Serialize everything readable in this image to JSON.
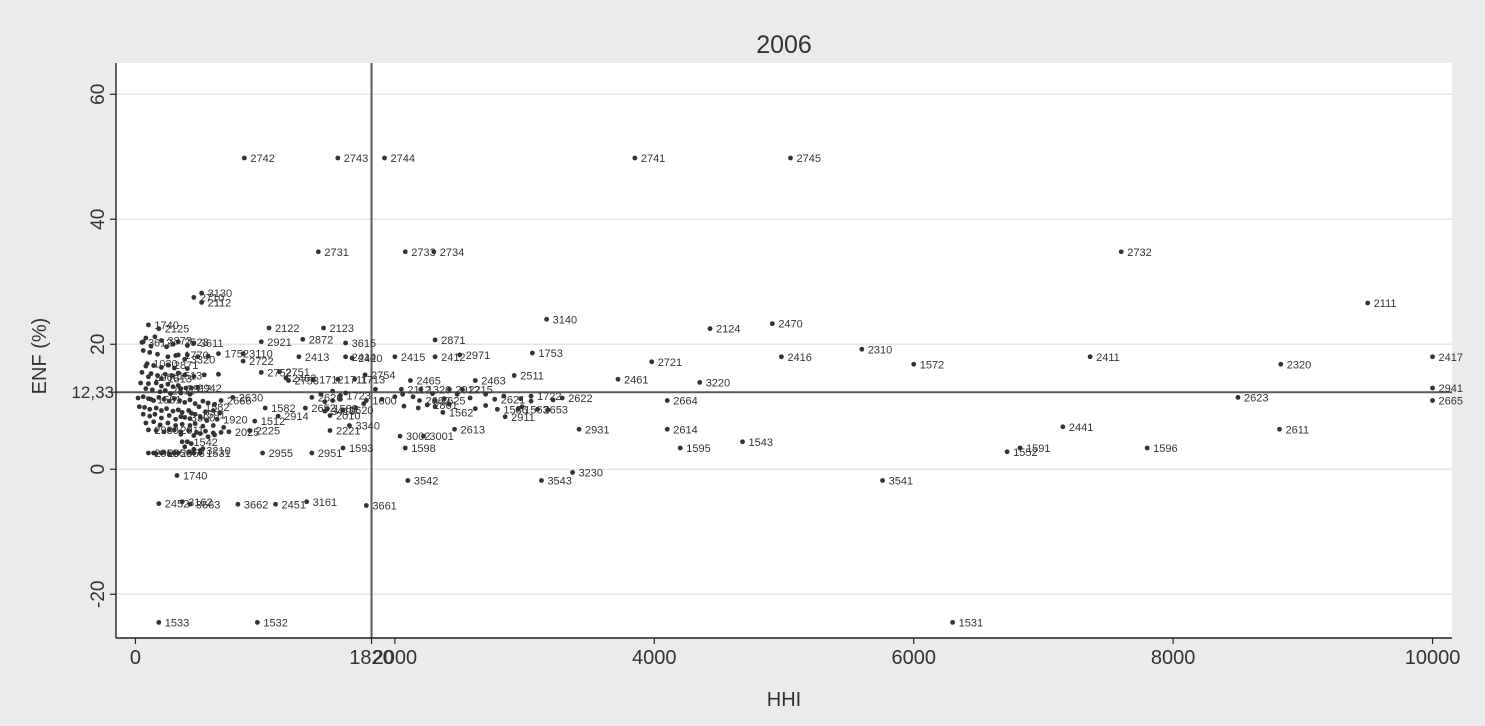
{
  "chart_data": {
    "type": "scatter",
    "title": "2006",
    "xlabel": "HHI",
    "ylabel": "ENF (%)",
    "xlim": [
      -150,
      10150
    ],
    "ylim": [
      -27,
      65
    ],
    "xticks": [
      {
        "v": 0,
        "label": "0"
      },
      {
        "v": 1820,
        "label": "1820"
      },
      {
        "v": 2000,
        "label": "2000"
      },
      {
        "v": 4000,
        "label": "4000"
      },
      {
        "v": 6000,
        "label": "6000"
      },
      {
        "v": 8000,
        "label": "8000"
      },
      {
        "v": 10000,
        "label": "10000"
      }
    ],
    "yticks": [
      {
        "v": -20,
        "label": "-20"
      },
      {
        "v": 0,
        "label": "0"
      },
      {
        "v": 12.33,
        "label": "12,33"
      },
      {
        "v": 20,
        "label": "20"
      },
      {
        "v": 40,
        "label": "40"
      },
      {
        "v": 60,
        "label": "60"
      }
    ],
    "gridlines_y": [
      -20,
      0,
      20,
      40,
      60
    ],
    "reference_lines": {
      "x": 1820,
      "y": 12.33
    },
    "grid": true,
    "points": [
      {
        "x": 840,
        "y": 49.8,
        "label": "2742"
      },
      {
        "x": 1560,
        "y": 49.8,
        "label": "2743"
      },
      {
        "x": 1920,
        "y": 49.8,
        "label": "2744"
      },
      {
        "x": 3850,
        "y": 49.8,
        "label": "2741"
      },
      {
        "x": 5050,
        "y": 49.8,
        "label": "2745"
      },
      {
        "x": 1410,
        "y": 34.8,
        "label": "2731"
      },
      {
        "x": 2080,
        "y": 34.8,
        "label": "2733"
      },
      {
        "x": 2300,
        "y": 34.8,
        "label": "2734"
      },
      {
        "x": 7600,
        "y": 34.8,
        "label": "2732"
      },
      {
        "x": 510,
        "y": 28.2,
        "label": "3130"
      },
      {
        "x": 450,
        "y": 27.5,
        "label": "2710"
      },
      {
        "x": 510,
        "y": 26.7,
        "label": "2112"
      },
      {
        "x": 9500,
        "y": 26.6,
        "label": "2111"
      },
      {
        "x": 3170,
        "y": 24.0,
        "label": "3140"
      },
      {
        "x": 4910,
        "y": 23.3,
        "label": "2470"
      },
      {
        "x": 4430,
        "y": 22.5,
        "label": "2124"
      },
      {
        "x": 100,
        "y": 23.1,
        "label": "1740"
      },
      {
        "x": 180,
        "y": 22.5,
        "label": "2125"
      },
      {
        "x": 1030,
        "y": 22.6,
        "label": "2122"
      },
      {
        "x": 1450,
        "y": 22.6,
        "label": "2123"
      },
      {
        "x": 2310,
        "y": 20.7,
        "label": "2871"
      },
      {
        "x": 1290,
        "y": 20.8,
        "label": "2872"
      },
      {
        "x": 970,
        "y": 20.4,
        "label": "2921"
      },
      {
        "x": 1620,
        "y": 20.2,
        "label": "3615"
      },
      {
        "x": 50,
        "y": 20.3,
        "label": "3612"
      },
      {
        "x": 200,
        "y": 20.6,
        "label": "3873"
      },
      {
        "x": 330,
        "y": 20.4,
        "label": "2523"
      },
      {
        "x": 450,
        "y": 20.2,
        "label": "3611"
      },
      {
        "x": 330,
        "y": 18.3,
        "label": "1770"
      },
      {
        "x": 640,
        "y": 18.5,
        "label": "1752"
      },
      {
        "x": 830,
        "y": 18.5,
        "label": "3110"
      },
      {
        "x": 380,
        "y": 17.6,
        "label": "3320"
      },
      {
        "x": 1260,
        "y": 18.0,
        "label": "2413"
      },
      {
        "x": 1620,
        "y": 18.0,
        "label": "2414"
      },
      {
        "x": 1670,
        "y": 17.8,
        "label": "2420"
      },
      {
        "x": 2000,
        "y": 18.0,
        "label": "2415"
      },
      {
        "x": 2310,
        "y": 18.0,
        "label": "2412"
      },
      {
        "x": 2500,
        "y": 18.3,
        "label": "2971"
      },
      {
        "x": 3060,
        "y": 18.6,
        "label": "1753"
      },
      {
        "x": 3980,
        "y": 17.2,
        "label": "2721"
      },
      {
        "x": 4980,
        "y": 18.0,
        "label": "2416"
      },
      {
        "x": 5600,
        "y": 19.2,
        "label": "2310"
      },
      {
        "x": 6000,
        "y": 16.8,
        "label": "1572"
      },
      {
        "x": 7360,
        "y": 18.0,
        "label": "2411"
      },
      {
        "x": 8830,
        "y": 16.8,
        "label": "2320"
      },
      {
        "x": 10000,
        "y": 18.0,
        "label": "2417"
      },
      {
        "x": 90,
        "y": 16.9,
        "label": "1030"
      },
      {
        "x": 250,
        "y": 16.7,
        "label": "2871"
      },
      {
        "x": 830,
        "y": 17.3,
        "label": "2722"
      },
      {
        "x": 970,
        "y": 15.5,
        "label": "2752"
      },
      {
        "x": 1110,
        "y": 15.6,
        "label": "2751"
      },
      {
        "x": 1180,
        "y": 14.2,
        "label": "2753"
      },
      {
        "x": 1160,
        "y": 14.6,
        "label": "2462"
      },
      {
        "x": 1370,
        "y": 14.4,
        "label": "1712"
      },
      {
        "x": 1560,
        "y": 14.4,
        "label": "1711"
      },
      {
        "x": 1690,
        "y": 14.4,
        "label": "1713"
      },
      {
        "x": 1770,
        "y": 15.1,
        "label": "2754"
      },
      {
        "x": 2120,
        "y": 14.2,
        "label": "2465"
      },
      {
        "x": 2620,
        "y": 14.2,
        "label": "2463"
      },
      {
        "x": 2920,
        "y": 15.0,
        "label": "2511"
      },
      {
        "x": 3720,
        "y": 14.4,
        "label": "2461"
      },
      {
        "x": 4350,
        "y": 13.9,
        "label": "3220"
      },
      {
        "x": 100,
        "y": 14.8,
        "label": "2960"
      },
      {
        "x": 200,
        "y": 14.5,
        "label": "1513"
      },
      {
        "x": 280,
        "y": 15.0,
        "label": "1513"
      },
      {
        "x": 430,
        "y": 13.0,
        "label": "2942"
      },
      {
        "x": 230,
        "y": 12.6,
        "label": "2811"
      },
      {
        "x": 350,
        "y": 12.9,
        "label": "2912"
      },
      {
        "x": 2050,
        "y": 12.8,
        "label": "2112"
      },
      {
        "x": 2200,
        "y": 12.8,
        "label": "1320"
      },
      {
        "x": 2420,
        "y": 12.8,
        "label": "2912"
      },
      {
        "x": 2520,
        "y": 12.8,
        "label": "2215"
      },
      {
        "x": 1360,
        "y": 11.5,
        "label": "2626"
      },
      {
        "x": 1580,
        "y": 11.8,
        "label": "1723"
      },
      {
        "x": 1780,
        "y": 11.0,
        "label": "1600"
      },
      {
        "x": 2190,
        "y": 11.0,
        "label": "2662"
      },
      {
        "x": 2310,
        "y": 11.0,
        "label": "2625"
      },
      {
        "x": 2770,
        "y": 11.2,
        "label": "2621"
      },
      {
        "x": 3050,
        "y": 11.7,
        "label": "1722"
      },
      {
        "x": 3290,
        "y": 11.4,
        "label": "2622"
      },
      {
        "x": 4100,
        "y": 11.0,
        "label": "2664"
      },
      {
        "x": 8500,
        "y": 11.5,
        "label": "2623"
      },
      {
        "x": 10000,
        "y": 13.0,
        "label": "2941"
      },
      {
        "x": 10000,
        "y": 11.0,
        "label": "2665"
      },
      {
        "x": 750,
        "y": 11.5,
        "label": "2630"
      },
      {
        "x": 660,
        "y": 11.0,
        "label": "2666"
      },
      {
        "x": 120,
        "y": 11.2,
        "label": "1581"
      },
      {
        "x": 490,
        "y": 10.0,
        "label": "1582"
      },
      {
        "x": 1000,
        "y": 9.8,
        "label": "1582"
      },
      {
        "x": 1310,
        "y": 9.8,
        "label": "2652"
      },
      {
        "x": 1480,
        "y": 9.7,
        "label": "1589"
      },
      {
        "x": 1600,
        "y": 9.5,
        "label": "1620"
      },
      {
        "x": 1460,
        "y": 9.3,
        "label": "3410"
      },
      {
        "x": 2250,
        "y": 10.3,
        "label": "2861"
      },
      {
        "x": 2370,
        "y": 9.1,
        "label": "1562"
      },
      {
        "x": 2790,
        "y": 9.6,
        "label": "1586"
      },
      {
        "x": 2950,
        "y": 9.6,
        "label": "1563"
      },
      {
        "x": 3100,
        "y": 9.6,
        "label": "2653"
      },
      {
        "x": 2850,
        "y": 8.4,
        "label": "2911"
      },
      {
        "x": 1500,
        "y": 8.6,
        "label": "2010"
      },
      {
        "x": 1100,
        "y": 8.5,
        "label": "2914"
      },
      {
        "x": 920,
        "y": 7.7,
        "label": "1512"
      },
      {
        "x": 380,
        "y": 8.3,
        "label": "3300"
      },
      {
        "x": 460,
        "y": 8.8,
        "label": "1591"
      },
      {
        "x": 630,
        "y": 8.0,
        "label": "1920"
      },
      {
        "x": 1650,
        "y": 7.0,
        "label": "3340"
      },
      {
        "x": 2460,
        "y": 6.4,
        "label": "2613"
      },
      {
        "x": 1500,
        "y": 6.2,
        "label": "2221"
      },
      {
        "x": 3420,
        "y": 6.4,
        "label": "2931"
      },
      {
        "x": 4100,
        "y": 6.4,
        "label": "2614"
      },
      {
        "x": 7150,
        "y": 6.8,
        "label": "2441"
      },
      {
        "x": 8820,
        "y": 6.4,
        "label": "2611"
      },
      {
        "x": 880,
        "y": 6.2,
        "label": "2225"
      },
      {
        "x": 720,
        "y": 6.0,
        "label": "2025"
      },
      {
        "x": 100,
        "y": 6.3,
        "label": "2930"
      },
      {
        "x": 300,
        "y": 6.3,
        "label": "2911"
      },
      {
        "x": 2040,
        "y": 5.3,
        "label": "3002"
      },
      {
        "x": 2220,
        "y": 5.3,
        "label": "3001"
      },
      {
        "x": 4680,
        "y": 4.4,
        "label": "1543"
      },
      {
        "x": 400,
        "y": 4.4,
        "label": "1542"
      },
      {
        "x": 1600,
        "y": 3.4,
        "label": "1593"
      },
      {
        "x": 2080,
        "y": 3.4,
        "label": "1598"
      },
      {
        "x": 4200,
        "y": 3.4,
        "label": "1595"
      },
      {
        "x": 6820,
        "y": 3.4,
        "label": "1591"
      },
      {
        "x": 7800,
        "y": 3.4,
        "label": "1596"
      },
      {
        "x": 6720,
        "y": 2.8,
        "label": "1552"
      },
      {
        "x": 500,
        "y": 3.0,
        "label": "3210"
      },
      {
        "x": 500,
        "y": 2.6,
        "label": "1531"
      },
      {
        "x": 100,
        "y": 2.6,
        "label": "2955"
      },
      {
        "x": 200,
        "y": 2.6,
        "label": "2956"
      },
      {
        "x": 300,
        "y": 2.6,
        "label": "2953"
      },
      {
        "x": 980,
        "y": 2.6,
        "label": "2955"
      },
      {
        "x": 1360,
        "y": 2.6,
        "label": "2951"
      },
      {
        "x": 3370,
        "y": -0.5,
        "label": "3230"
      },
      {
        "x": 320,
        "y": -1.0,
        "label": "1740"
      },
      {
        "x": 2100,
        "y": -1.8,
        "label": "3542"
      },
      {
        "x": 3130,
        "y": -1.8,
        "label": "3543"
      },
      {
        "x": 5760,
        "y": -1.8,
        "label": "3541"
      },
      {
        "x": 180,
        "y": -5.5,
        "label": "2452"
      },
      {
        "x": 360,
        "y": -5.2,
        "label": "3162"
      },
      {
        "x": 420,
        "y": -5.6,
        "label": "3663"
      },
      {
        "x": 790,
        "y": -5.6,
        "label": "3662"
      },
      {
        "x": 1080,
        "y": -5.6,
        "label": "2451"
      },
      {
        "x": 1320,
        "y": -5.2,
        "label": "3161"
      },
      {
        "x": 1780,
        "y": -5.8,
        "label": "3661"
      },
      {
        "x": 180,
        "y": -24.5,
        "label": "1533"
      },
      {
        "x": 940,
        "y": -24.5,
        "label": "1532"
      },
      {
        "x": 6300,
        "y": -24.5,
        "label": "1531"
      }
    ],
    "extra_dots": [
      [
        60,
        20.4
      ],
      [
        80,
        21.0
      ],
      [
        150,
        21.2
      ],
      [
        120,
        19.7
      ],
      [
        240,
        19.6
      ],
      [
        290,
        20.0
      ],
      [
        400,
        19.8
      ],
      [
        60,
        19.0
      ],
      [
        110,
        18.7
      ],
      [
        170,
        18.4
      ],
      [
        250,
        18.0
      ],
      [
        310,
        18.2
      ],
      [
        400,
        18.3
      ],
      [
        480,
        18.0
      ],
      [
        560,
        18.1
      ],
      [
        80,
        16.5
      ],
      [
        140,
        16.6
      ],
      [
        200,
        16.3
      ],
      [
        300,
        16.2
      ],
      [
        400,
        16.1
      ],
      [
        50,
        15.5
      ],
      [
        120,
        15.3
      ],
      [
        170,
        15.0
      ],
      [
        230,
        15.2
      ],
      [
        330,
        15.4
      ],
      [
        380,
        15.1
      ],
      [
        450,
        14.9
      ],
      [
        530,
        15.1
      ],
      [
        640,
        15.2
      ],
      [
        40,
        13.8
      ],
      [
        100,
        13.7
      ],
      [
        160,
        13.8
      ],
      [
        200,
        13.3
      ],
      [
        250,
        13.6
      ],
      [
        290,
        13.2
      ],
      [
        330,
        13.4
      ],
      [
        390,
        13.0
      ],
      [
        480,
        13.1
      ],
      [
        80,
        12.9
      ],
      [
        130,
        12.7
      ],
      [
        190,
        12.4
      ],
      [
        270,
        12.1
      ],
      [
        350,
        12.2
      ],
      [
        420,
        12.0
      ],
      [
        20,
        11.4
      ],
      [
        60,
        11.6
      ],
      [
        100,
        11.3
      ],
      [
        140,
        11.0
      ],
      [
        180,
        11.5
      ],
      [
        220,
        11.2
      ],
      [
        260,
        10.9
      ],
      [
        300,
        11.3
      ],
      [
        340,
        11.0
      ],
      [
        380,
        10.7
      ],
      [
        420,
        11.1
      ],
      [
        460,
        10.5
      ],
      [
        520,
        10.9
      ],
      [
        560,
        10.6
      ],
      [
        610,
        10.4
      ],
      [
        30,
        10.0
      ],
      [
        70,
        9.9
      ],
      [
        110,
        9.6
      ],
      [
        160,
        9.8
      ],
      [
        200,
        9.4
      ],
      [
        240,
        9.7
      ],
      [
        290,
        9.3
      ],
      [
        330,
        9.5
      ],
      [
        360,
        9.1
      ],
      [
        410,
        9.4
      ],
      [
        430,
        9.0
      ],
      [
        540,
        9.2
      ],
      [
        600,
        9.4
      ],
      [
        650,
        9.0
      ],
      [
        60,
        8.8
      ],
      [
        110,
        8.5
      ],
      [
        150,
        8.8
      ],
      [
        200,
        8.2
      ],
      [
        260,
        8.6
      ],
      [
        310,
        8.0
      ],
      [
        350,
        8.4
      ],
      [
        420,
        8.1
      ],
      [
        500,
        8.3
      ],
      [
        550,
        7.8
      ],
      [
        80,
        7.4
      ],
      [
        140,
        7.6
      ],
      [
        190,
        7.1
      ],
      [
        250,
        7.4
      ],
      [
        310,
        7.0
      ],
      [
        360,
        7.2
      ],
      [
        420,
        7.0
      ],
      [
        460,
        7.3
      ],
      [
        520,
        6.9
      ],
      [
        600,
        7.0
      ],
      [
        680,
        6.7
      ],
      [
        160,
        6.2
      ],
      [
        220,
        6.0
      ],
      [
        260,
        6.3
      ],
      [
        350,
        6.0
      ],
      [
        410,
        6.2
      ],
      [
        470,
        5.9
      ],
      [
        540,
        6.1
      ],
      [
        600,
        5.8
      ],
      [
        660,
        5.9
      ],
      [
        350,
        5.6
      ],
      [
        450,
        5.4
      ],
      [
        500,
        5.7
      ],
      [
        560,
        5.2
      ],
      [
        610,
        5.5
      ],
      [
        360,
        4.4
      ],
      [
        430,
        4.1
      ],
      [
        380,
        3.6
      ],
      [
        450,
        3.2
      ],
      [
        520,
        3.3
      ],
      [
        140,
        2.6
      ],
      [
        160,
        2.5
      ],
      [
        220,
        2.7
      ],
      [
        260,
        2.5
      ],
      [
        330,
        2.6
      ],
      [
        410,
        2.7
      ],
      [
        450,
        2.6
      ],
      [
        1580,
        11.2
      ],
      [
        1700,
        9.8
      ],
      [
        1760,
        10.5
      ],
      [
        1520,
        11.0
      ],
      [
        2000,
        11.6
      ],
      [
        2060,
        12.0
      ],
      [
        2140,
        11.6
      ],
      [
        2290,
        12.1
      ],
      [
        2380,
        11.3
      ],
      [
        2480,
        12.0
      ],
      [
        2580,
        11.4
      ],
      [
        2700,
        12.0
      ],
      [
        2840,
        11.7
      ],
      [
        2970,
        11.3
      ],
      [
        3050,
        10.9
      ],
      [
        3220,
        11.1
      ],
      [
        1460,
        10.8
      ],
      [
        1430,
        12.0
      ],
      [
        1520,
        12.5
      ],
      [
        1620,
        12.2
      ],
      [
        1850,
        12.8
      ],
      [
        1900,
        11.2
      ],
      [
        2070,
        10.1
      ],
      [
        2180,
        9.8
      ],
      [
        2310,
        10.0
      ],
      [
        2420,
        10.4
      ],
      [
        2620,
        9.7
      ],
      [
        2700,
        10.2
      ],
      [
        2980,
        10.0
      ],
      [
        3180,
        9.5
      ]
    ]
  }
}
